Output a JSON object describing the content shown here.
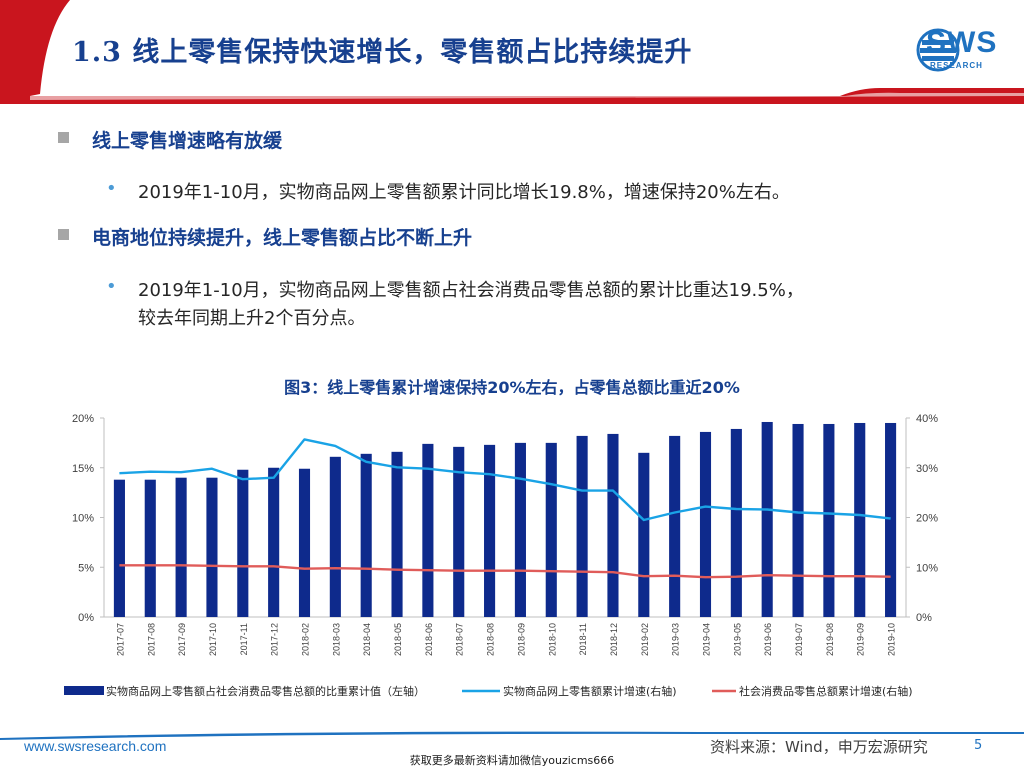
{
  "header": {
    "title": "1.3 线上零售保持快速增长，零售额占比持续提升",
    "logo_text": "SWS",
    "logo_sub": "RESEARCH"
  },
  "sections": [
    {
      "heading": "线上零售增速略有放缓",
      "bullets": [
        "2019年1-10月，实物商品网上零售额累计同比增长19.8%，增速保持20%左右。"
      ]
    },
    {
      "heading": "电商地位持续提升，线上零售额占比不断上升",
      "bullets": [
        "2019年1-10月，实物商品网上零售额占社会消费品零售总额的累计比重达19.5%，",
        "较去年同期上升2个百分点。"
      ]
    }
  ],
  "bullet_glyph": "•",
  "chart_data": {
    "type": "bar",
    "title": "图3：线上零售累计增速保持20%左右，占零售总额比重近20%",
    "categories": [
      "2017-07",
      "2017-08",
      "2017-09",
      "2017-10",
      "2017-11",
      "2017-12",
      "2018-02",
      "2018-03",
      "2018-04",
      "2018-05",
      "2018-06",
      "2018-07",
      "2018-08",
      "2018-09",
      "2018-10",
      "2018-11",
      "2018-12",
      "2019-02",
      "2019-03",
      "2019-04",
      "2019-05",
      "2019-06",
      "2019-07",
      "2019-08",
      "2019-09",
      "2019-10"
    ],
    "left_axis": {
      "min": 0,
      "max": 20,
      "ticks": [
        "0%",
        "5%",
        "10%",
        "15%",
        "20%"
      ]
    },
    "right_axis": {
      "min": 0,
      "max": 40,
      "ticks": [
        "0%",
        "10%",
        "20%",
        "30%",
        "40%"
      ]
    },
    "series": [
      {
        "name": "实物商品网上零售额占社会消费品零售总额的比重累计值（左轴）",
        "kind": "bar",
        "axis": "left",
        "color": "#0e2a8c",
        "values": [
          13.8,
          13.8,
          14.0,
          14.0,
          14.8,
          15.0,
          14.9,
          16.1,
          16.4,
          16.6,
          17.4,
          17.1,
          17.3,
          17.5,
          17.5,
          18.2,
          18.4,
          16.5,
          18.2,
          18.6,
          18.9,
          19.6,
          19.4,
          19.4,
          19.5,
          19.5
        ]
      },
      {
        "name": "实物商品网上零售额累计增速(右轴)",
        "kind": "line",
        "axis": "right",
        "color": "#1aa3e6",
        "values": [
          28.9,
          29.2,
          29.1,
          29.8,
          27.7,
          28.0,
          35.7,
          34.4,
          31.2,
          30.1,
          29.8,
          29.1,
          28.7,
          27.8,
          26.7,
          25.4,
          25.4,
          19.5,
          21.0,
          22.2,
          21.7,
          21.6,
          21.0,
          20.8,
          20.5,
          19.8
        ]
      },
      {
        "name": "社会消费品零售总额累计增速(右轴)",
        "kind": "line",
        "axis": "right",
        "color": "#e05c5a",
        "values": [
          10.4,
          10.4,
          10.4,
          10.3,
          10.2,
          10.2,
          9.7,
          9.8,
          9.7,
          9.5,
          9.4,
          9.3,
          9.3,
          9.3,
          9.2,
          9.1,
          9.0,
          8.2,
          8.3,
          8.0,
          8.1,
          8.4,
          8.3,
          8.2,
          8.2,
          8.1
        ]
      }
    ]
  },
  "footer": {
    "site": "www.swsresearch.com",
    "source": "资料来源：Wind，申万宏源研究",
    "page": "5",
    "watermark": "获取更多最新资料请加微信youzicms666"
  },
  "colors": {
    "brand_blue": "#17408f",
    "accent_red": "#c9151e",
    "link_blue": "#1f72c0"
  }
}
